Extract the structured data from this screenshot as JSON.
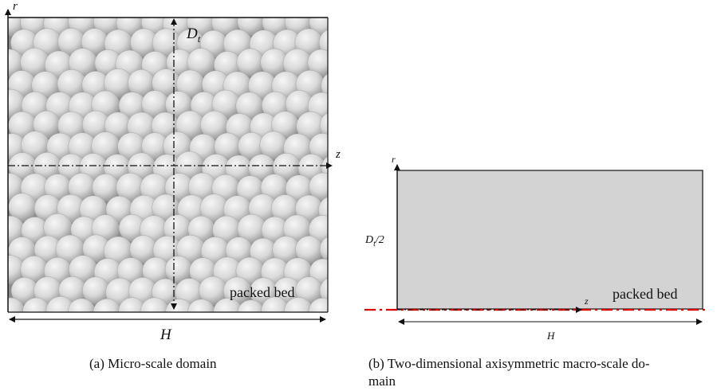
{
  "panel_a": {
    "r_label": "r",
    "z_label": "z",
    "dt_label": "D",
    "dt_sub": "t",
    "bed_label": "packed bed",
    "h_label": "H",
    "caption": "(a)  Micro-scale domain"
  },
  "panel_b": {
    "r_label": "r",
    "z_label": "z",
    "radius_label_main": "D",
    "radius_label_sub": "t",
    "radius_label_tail": "/2",
    "bed_label": "packed bed",
    "h_label": "H",
    "caption_line1": "(b)  Two-dimensional axisymmetric macro-scale do-",
    "caption_line2": "main"
  },
  "colors": {
    "sphere_light": "#f2f2f2",
    "sphere_dark": "#9c9c9c",
    "domain_fill": "#d3d3d3",
    "symmetry_axis": "#e00000"
  }
}
